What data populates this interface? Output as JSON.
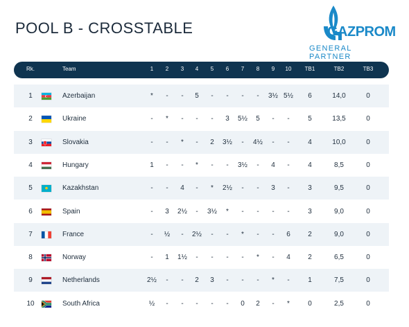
{
  "title": "POOL B - CROSSTABLE",
  "sponsor": {
    "brand": "GAZPROM",
    "subtitle": "GENERAL PARTNER",
    "brand_color": "#1a89c8"
  },
  "header": [
    "Rk.",
    "Team",
    "1",
    "2",
    "3",
    "4",
    "5",
    "6",
    "7",
    "8",
    "9",
    "10",
    "TB1",
    "TB2",
    "TB3"
  ],
  "rows": [
    {
      "rank": "1",
      "team": "Azerbaijan",
      "flag": "flag-azerbaijan-icon",
      "results": [
        "*",
        "-",
        "-",
        "5",
        "-",
        "-",
        "-",
        "-",
        "3½",
        "5½"
      ],
      "tb1": "6",
      "tb2": "14,0",
      "tb3": "0"
    },
    {
      "rank": "2",
      "team": "Ukraine",
      "flag": "flag-ukraine-icon",
      "results": [
        "-",
        "*",
        "-",
        "-",
        "-",
        "3",
        "5½",
        "5",
        "-",
        "-"
      ],
      "tb1": "5",
      "tb2": "13,5",
      "tb3": "0"
    },
    {
      "rank": "3",
      "team": "Slovakia",
      "flag": "flag-slovakia-icon",
      "results": [
        "-",
        "-",
        "*",
        "-",
        "2",
        "3½",
        "-",
        "4½",
        "-",
        "-"
      ],
      "tb1": "4",
      "tb2": "10,0",
      "tb3": "0"
    },
    {
      "rank": "4",
      "team": "Hungary",
      "flag": "flag-hungary-icon",
      "results": [
        "1",
        "-",
        "-",
        "*",
        "-",
        "-",
        "3½",
        "-",
        "4",
        "-"
      ],
      "tb1": "4",
      "tb2": "8,5",
      "tb3": "0"
    },
    {
      "rank": "5",
      "team": "Kazakhstan",
      "flag": "flag-kazakhstan-icon",
      "results": [
        "-",
        "-",
        "4",
        "-",
        "*",
        "2½",
        "-",
        "-",
        "3",
        "-"
      ],
      "tb1": "3",
      "tb2": "9,5",
      "tb3": "0"
    },
    {
      "rank": "6",
      "team": "Spain",
      "flag": "flag-spain-icon",
      "results": [
        "-",
        "3",
        "2½",
        "-",
        "3½",
        "*",
        "-",
        "-",
        "-",
        "-"
      ],
      "tb1": "3",
      "tb2": "9,0",
      "tb3": "0"
    },
    {
      "rank": "7",
      "team": "France",
      "flag": "flag-france-icon",
      "results": [
        "-",
        "½",
        "-",
        "2½",
        "-",
        "-",
        "*",
        "-",
        "-",
        "6"
      ],
      "tb1": "2",
      "tb2": "9,0",
      "tb3": "0"
    },
    {
      "rank": "8",
      "team": "Norway",
      "flag": "flag-norway-icon",
      "results": [
        "-",
        "1",
        "1½",
        "-",
        "-",
        "-",
        "-",
        "*",
        "-",
        "4"
      ],
      "tb1": "2",
      "tb2": "6,5",
      "tb3": "0"
    },
    {
      "rank": "9",
      "team": "Netherlands",
      "flag": "flag-netherlands-icon",
      "results": [
        "2½",
        "-",
        "-",
        "2",
        "3",
        "-",
        "-",
        "-",
        "*",
        "-"
      ],
      "tb1": "1",
      "tb2": "7,5",
      "tb3": "0"
    },
    {
      "rank": "10",
      "team": "South Africa",
      "flag": "flag-south-africa-icon",
      "results": [
        "½",
        "-",
        "-",
        "-",
        "-",
        "-",
        "0",
        "2",
        "-",
        "*"
      ],
      "tb1": "0",
      "tb2": "2,5",
      "tb3": "0"
    }
  ],
  "colors": {
    "header_bg": "#0f3450",
    "row_alt_bg": "#eef3f7",
    "text": "#1e2d3c"
  }
}
